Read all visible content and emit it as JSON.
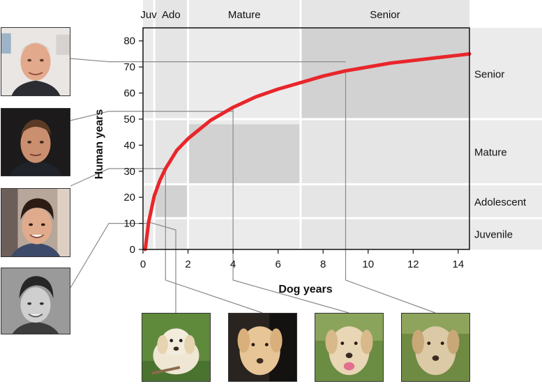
{
  "chart_data": {
    "type": "line",
    "xlabel": "Dog years",
    "ylabel": "Human years",
    "xlim": [
      0,
      14.5
    ],
    "ylim": [
      0,
      85
    ],
    "x_ticks": [
      0,
      2,
      4,
      6,
      8,
      10,
      12,
      14
    ],
    "y_ticks": [
      0,
      10,
      20,
      30,
      40,
      50,
      60,
      70,
      80
    ],
    "grid": false,
    "series": [
      {
        "color": "#e8262b",
        "x": [
          0.1,
          0.25,
          0.5,
          0.75,
          1,
          1.5,
          2,
          3,
          4,
          5,
          6,
          7,
          8,
          9,
          10,
          11,
          12,
          13,
          14,
          14.5
        ],
        "y": [
          0,
          10.5,
          20.5,
          26.5,
          31,
          38,
          42.5,
          49.5,
          54.5,
          58.5,
          61.5,
          64,
          66.5,
          68.5,
          70,
          71.5,
          72.5,
          73.5,
          74.5,
          75
        ]
      }
    ],
    "dog_stages": [
      {
        "label": "Juv",
        "x_range": [
          0,
          0.5
        ]
      },
      {
        "label": "Ado",
        "x_range": [
          0.5,
          2
        ]
      },
      {
        "label": "Mature",
        "x_range": [
          2,
          7
        ]
      },
      {
        "label": "Senior",
        "x_range": [
          7,
          14.5
        ]
      }
    ],
    "human_stages": [
      {
        "label": "Senior",
        "y_range": [
          50,
          85
        ]
      },
      {
        "label": "Mature",
        "y_range": [
          25,
          50
        ]
      },
      {
        "label": "Adolescent",
        "y_range": [
          12,
          25
        ]
      },
      {
        "label": "Juvenile",
        "y_range": [
          0,
          12
        ]
      }
    ],
    "highlight_boxes": [
      {
        "x_range": [
          0.5,
          2
        ],
        "y_range": [
          12,
          25
        ]
      },
      {
        "x_range": [
          2,
          7
        ],
        "y_range": [
          25,
          48
        ]
      },
      {
        "x_range": [
          7,
          14.5
        ],
        "y_range": [
          50,
          85
        ]
      }
    ],
    "human_photo_markers": [
      72,
      53,
      31,
      10
    ],
    "dog_photo_markers": [
      0.25,
      1,
      4,
      9
    ]
  },
  "colors": {
    "curve": "#e8262b",
    "band_light": "#ebebeb",
    "band_mid": "#e0e0e0",
    "band_dark": "#d2d2d2",
    "separator": "#ffffff",
    "frame": "#111111",
    "leader": "#8a8a8a"
  },
  "photos": {
    "human": [
      "man-portrait-senior",
      "man-portrait-mature",
      "teen-portrait",
      "boy-portrait-bw"
    ],
    "dog": [
      "labrador-puppy",
      "labrador-adolescent",
      "labrador-adult",
      "labrador-senior"
    ]
  }
}
